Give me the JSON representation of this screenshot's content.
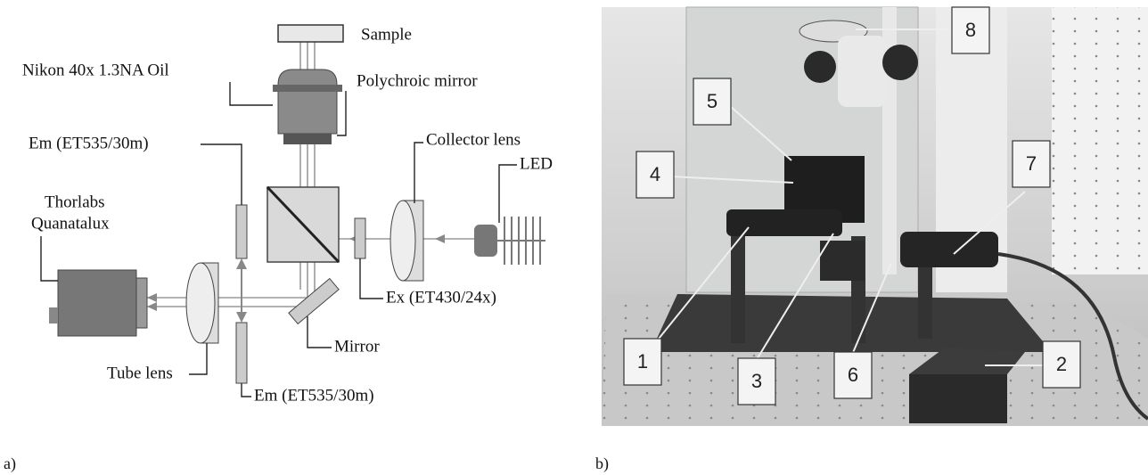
{
  "panel_a": {
    "label": "a)",
    "labels": {
      "sample": "Sample",
      "objective": "Nikon 40x 1.3NA Oil",
      "polychroic": "Polychroic mirror",
      "collector": "Collector lens",
      "em_top": "Em (ET535/30m)",
      "led": "LED",
      "camera_line1": "Thorlabs",
      "camera_line2": "Quanatalux",
      "ex": "Ex (ET430/24x)",
      "mirror": "Mirror",
      "tube_lens": "Tube lens",
      "em_bottom": "Em (ET535/30m)"
    }
  },
  "panel_b": {
    "label": "b)",
    "callouts": [
      "1",
      "2",
      "3",
      "4",
      "5",
      "6",
      "7",
      "8"
    ]
  }
}
